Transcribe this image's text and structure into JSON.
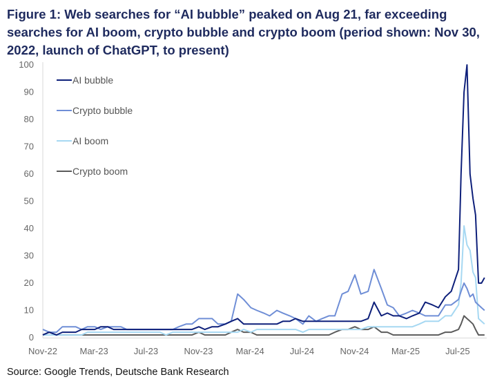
{
  "chart_data": {
    "type": "line",
    "title": "Figure 1: Web searches for “AI bubble” peaked on Aug 21, far exceeding searches for AI boom, crypto bubble and crypto boom (period shown: Nov 30, 2022, launch of ChatGPT, to present)",
    "source": "Source: Google Trends, Deutsche Bank Research",
    "xlabel": "",
    "ylabel": "",
    "ylim": [
      0,
      100
    ],
    "yticks": [
      0,
      10,
      20,
      30,
      40,
      50,
      60,
      70,
      80,
      90,
      100
    ],
    "xticks": [
      {
        "date": "2022-11-30",
        "label": "Nov-22"
      },
      {
        "date": "2023-03-30",
        "label": "Mar-23"
      },
      {
        "date": "2023-07-30",
        "label": "Jul-23"
      },
      {
        "date": "2023-11-30",
        "label": "Nov-23"
      },
      {
        "date": "2024-03-30",
        "label": "Mar-24"
      },
      {
        "date": "2024-07-30",
        "label": "Jul-24"
      },
      {
        "date": "2024-11-30",
        "label": "Nov-24"
      },
      {
        "date": "2025-03-30",
        "label": "Mar-25"
      },
      {
        "date": "2025-07-30",
        "label": "Jul-25"
      }
    ],
    "xlim": [
      "2022-11-30",
      "2025-10-03"
    ],
    "grid": false,
    "legend_placement": "top-left",
    "x": [
      "2022-11-30",
      "2022-12-15",
      "2023-01-01",
      "2023-01-15",
      "2023-02-01",
      "2023-02-15",
      "2023-03-01",
      "2023-03-15",
      "2023-04-01",
      "2023-04-15",
      "2023-05-01",
      "2023-05-15",
      "2023-06-01",
      "2023-06-15",
      "2023-07-01",
      "2023-07-15",
      "2023-08-01",
      "2023-08-15",
      "2023-09-01",
      "2023-09-15",
      "2023-10-01",
      "2023-10-15",
      "2023-11-01",
      "2023-11-15",
      "2023-12-01",
      "2023-12-15",
      "2024-01-01",
      "2024-01-15",
      "2024-02-01",
      "2024-02-15",
      "2024-03-01",
      "2024-03-15",
      "2024-04-01",
      "2024-04-15",
      "2024-05-01",
      "2024-05-15",
      "2024-06-01",
      "2024-06-15",
      "2024-07-01",
      "2024-07-15",
      "2024-08-01",
      "2024-08-15",
      "2024-09-01",
      "2024-09-15",
      "2024-10-01",
      "2024-10-15",
      "2024-11-01",
      "2024-11-15",
      "2024-12-01",
      "2024-12-15",
      "2025-01-01",
      "2025-01-15",
      "2025-02-01",
      "2025-02-15",
      "2025-03-01",
      "2025-03-15",
      "2025-04-01",
      "2025-04-15",
      "2025-05-01",
      "2025-05-15",
      "2025-06-01",
      "2025-06-15",
      "2025-07-01",
      "2025-07-15",
      "2025-08-01",
      "2025-08-07",
      "2025-08-14",
      "2025-08-21",
      "2025-08-28",
      "2025-09-04",
      "2025-09-10",
      "2025-09-17",
      "2025-09-24",
      "2025-10-01"
    ],
    "series": [
      {
        "name": "AI bubble",
        "color": "#0d1f7a",
        "values": [
          1,
          2,
          1,
          2,
          2,
          2,
          3,
          3,
          3,
          4,
          4,
          3,
          3,
          3,
          3,
          3,
          3,
          3,
          3,
          3,
          3,
          3,
          3,
          3,
          4,
          3,
          4,
          4,
          5,
          6,
          7,
          5,
          5,
          5,
          5,
          5,
          5,
          6,
          6,
          7,
          6,
          6,
          6,
          6,
          6,
          6,
          6,
          6,
          6,
          6,
          7,
          13,
          8,
          9,
          8,
          8,
          7,
          8,
          9,
          13,
          12,
          11,
          15,
          17,
          25,
          60,
          90,
          100,
          60,
          51,
          45,
          20,
          20,
          22
        ]
      },
      {
        "name": "Crypto bubble",
        "color": "#6f8ed6",
        "values": [
          3,
          2,
          2,
          4,
          4,
          4,
          3,
          4,
          4,
          3,
          4,
          4,
          4,
          3,
          3,
          3,
          3,
          3,
          3,
          3,
          3,
          4,
          5,
          5,
          7,
          7,
          7,
          5,
          5,
          6,
          16,
          14,
          11,
          10,
          9,
          8,
          10,
          9,
          8,
          7,
          5,
          8,
          6,
          7,
          8,
          8,
          16,
          17,
          23,
          16,
          17,
          25,
          18,
          12,
          11,
          8,
          9,
          10,
          9,
          8,
          8,
          8,
          12,
          12,
          14,
          17,
          20,
          18,
          15,
          16,
          13,
          12,
          11,
          10
        ]
      },
      {
        "name": "AI boom",
        "color": "#a6d8f2",
        "values": [
          1,
          1,
          1,
          1,
          1,
          1,
          1,
          2,
          2,
          2,
          2,
          2,
          2,
          2,
          2,
          2,
          2,
          2,
          2,
          1,
          2,
          2,
          2,
          2,
          2,
          2,
          2,
          2,
          2,
          2,
          2,
          3,
          2,
          3,
          3,
          3,
          3,
          3,
          3,
          3,
          2,
          3,
          3,
          3,
          3,
          3,
          3,
          3,
          3,
          3,
          4,
          4,
          4,
          4,
          4,
          4,
          4,
          4,
          5,
          6,
          6,
          6,
          8,
          8,
          12,
          20,
          41,
          34,
          32,
          24,
          22,
          7,
          6,
          5
        ]
      },
      {
        "name": "Crypto boom",
        "color": "#5a5a5a",
        "values": [
          1,
          2,
          1,
          1,
          1,
          1,
          1,
          1,
          1,
          1,
          1,
          1,
          1,
          1,
          1,
          1,
          1,
          1,
          1,
          1,
          1,
          1,
          1,
          1,
          2,
          1,
          1,
          1,
          1,
          2,
          3,
          2,
          2,
          1,
          1,
          1,
          1,
          1,
          1,
          1,
          1,
          1,
          1,
          1,
          1,
          2,
          3,
          3,
          4,
          3,
          3,
          4,
          2,
          2,
          1,
          1,
          1,
          1,
          1,
          1,
          1,
          1,
          2,
          2,
          3,
          5,
          8,
          7,
          6,
          5,
          3,
          1,
          1,
          1
        ]
      }
    ]
  }
}
